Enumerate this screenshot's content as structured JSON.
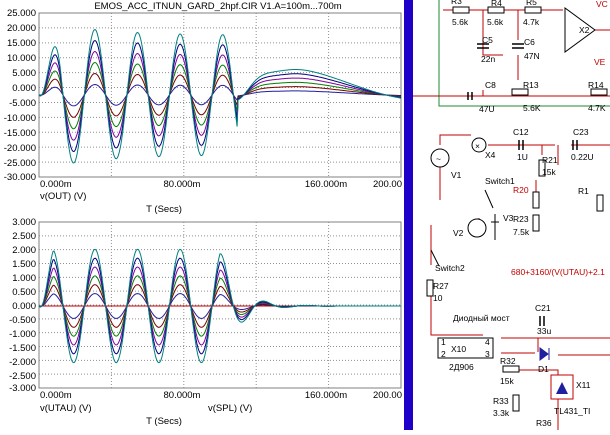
{
  "window": {
    "title": "EMOS_ACC_ITNUN_GARD_2hpf.CIR V1.A=100m...700m"
  },
  "plot_top": {
    "y_ticks": [
      "25.000",
      "20.000",
      "15.000",
      "10.000",
      "5.000",
      "0.000",
      "-5.000",
      "-10.000",
      "-15.000",
      "-20.000",
      "-25.000",
      "-30.000"
    ],
    "x_ticks": [
      "0.000m",
      "80.000m",
      "160.000m",
      "200.00"
    ],
    "xlabel": "T (Secs)",
    "trace_label": "v(OUT) (V)"
  },
  "plot_bottom": {
    "y_ticks": [
      "3.000",
      "2.500",
      "2.000",
      "1.500",
      "1.000",
      "0.500",
      "0.000",
      "-0.500",
      "-1.000",
      "-1.500",
      "-2.000",
      "-2.500",
      "-3.000"
    ],
    "x_ticks": [
      "0.000m",
      "80.000m",
      "160.000m",
      "200.00"
    ],
    "xlabel": "T (Secs)",
    "trace_label_1": "v(UTAU) (V)",
    "trace_label_2": "v(SPL) (V)"
  },
  "schematic": {
    "labels": {
      "r3": "R3",
      "r4": "R4",
      "r5": "R5",
      "r3v": "5.6k",
      "r4v": "5.6k",
      "r5v": "4.7k",
      "c5": "C5",
      "c5v": "22n",
      "c6": "C6",
      "c6v": "47N",
      "x2": "X2",
      "vc": "VC",
      "ve": "VE",
      "c8": "C8",
      "c8v": "47U",
      "r13": "R13",
      "r13v": "5.6K",
      "r14": "R14",
      "r14v": "4.7K",
      "x4": "X4",
      "c12": "C12",
      "c12v": "1U",
      "c23": "C23",
      "c23v": "0.22U",
      "r21": "R21",
      "r21v": "15k",
      "v1": "V1",
      "switch1": "Switch1",
      "r20": "R20",
      "r1": "R1",
      "v3": "V3",
      "v2": "V2",
      "r23": "R23",
      "r23v": "7.5k",
      "switch2": "Switch2",
      "expr": "680+3160/(V(UTAU)+2.1",
      "r27": "R27",
      "r27v": "10",
      "c21": "C21",
      "c21v": "33u",
      "bridge_label": "Диодный мост",
      "x10": "X10",
      "x10t": "2Д906",
      "p1": "1",
      "p2": "2",
      "p3": "3",
      "p4": "4",
      "r32": "R32",
      "r32v": "15k",
      "d1": "D1",
      "x11": "X11",
      "r33": "R33",
      "r33v": "3.3k",
      "tl": "TL431_TI",
      "r36": "R36"
    }
  },
  "colors": {
    "divider": "#1f00c8",
    "axis_text": "#000000",
    "trace_label_red": "#b00000",
    "trace_label_blue": "#1f1fa0",
    "grid": "#808080"
  }
}
